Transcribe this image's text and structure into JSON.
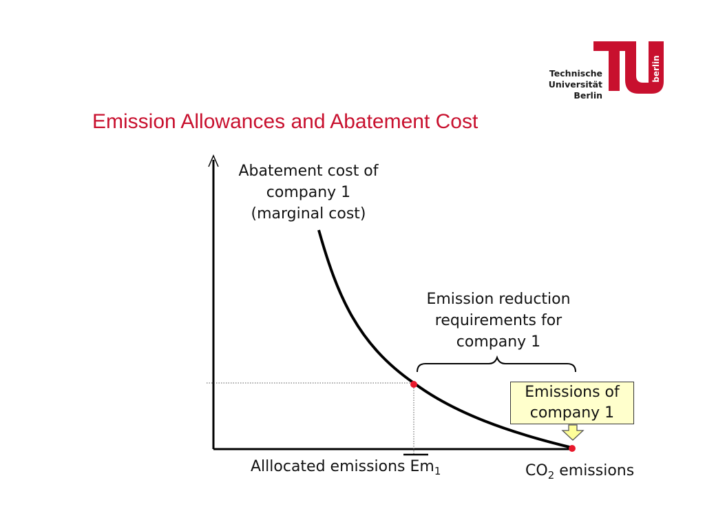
{
  "title": "Emission Allowances and Abatement Cost",
  "logo": {
    "text_lines": [
      "Technische",
      "Universität",
      "Berlin"
    ],
    "side_text": "berlin",
    "brand_color": "#c8102e"
  },
  "diagram": {
    "y_axis_label": [
      "Abatement cost of",
      "company 1",
      "(marginal cost)"
    ],
    "brace_label": [
      "Emission reduction",
      "requirements for",
      "company 1"
    ],
    "box_label": [
      "Emissions of",
      "company 1"
    ],
    "x_marker_label": {
      "text": "Alllocated emissions Em",
      "sub": "1"
    },
    "x_axis_label": {
      "prefix": "CO",
      "sub": "2",
      "suffix": " emissions"
    },
    "colors": {
      "curve": "#000000",
      "points": "#e8192c",
      "box_fill": "#ffffcc",
      "arrow_fill": "#ffff99"
    }
  }
}
